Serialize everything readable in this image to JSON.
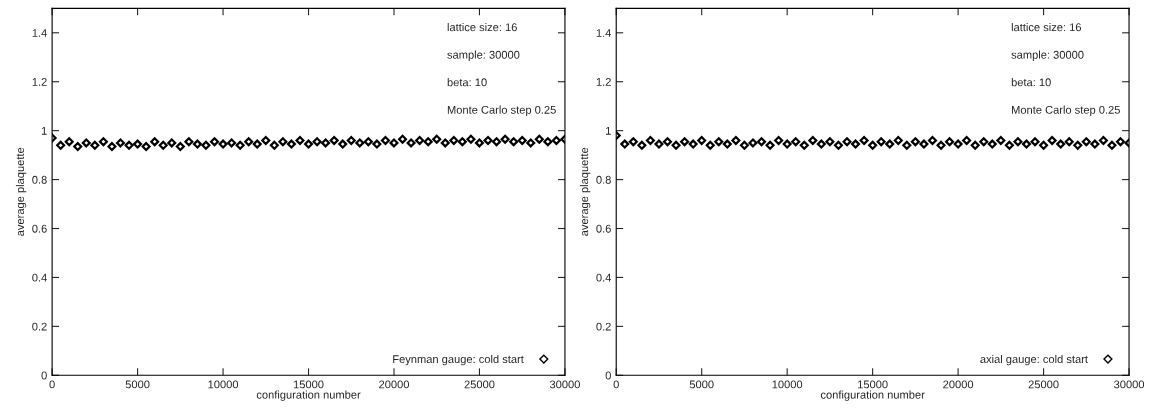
{
  "chart_data": [
    {
      "type": "scatter",
      "xlabel": "configuration number",
      "ylabel": "average plaquette",
      "xlim": [
        0,
        30000
      ],
      "ylim": [
        0,
        1.5
      ],
      "xticks": [
        0,
        5000,
        10000,
        15000,
        20000,
        25000,
        30000
      ],
      "yticks": [
        0,
        0.2,
        0.4,
        0.6,
        0.8,
        1,
        1.2,
        1.4
      ],
      "grid": false,
      "legend": "bottom right",
      "marker": "diamond",
      "annotations": [
        "lattice size: 16",
        "sample: 30000",
        "beta: 10",
        "Monte Carlo step 0.25"
      ],
      "x": [
        0,
        500,
        1000,
        1500,
        2000,
        2500,
        3000,
        3500,
        4000,
        4500,
        5000,
        5500,
        6000,
        6500,
        7000,
        7500,
        8000,
        8500,
        9000,
        9500,
        10000,
        10500,
        11000,
        11500,
        12000,
        12500,
        13000,
        13500,
        14000,
        14500,
        15000,
        15500,
        16000,
        16500,
        17000,
        17500,
        18000,
        18500,
        19000,
        19500,
        20000,
        20500,
        21000,
        21500,
        22000,
        22500,
        23000,
        23500,
        24000,
        24500,
        25000,
        25500,
        26000,
        26500,
        27000,
        27500,
        28000,
        28500,
        29000,
        29500,
        30000
      ],
      "series": [
        {
          "name": "Feynman gauge: cold start",
          "color": "#000000",
          "values": [
            0.97,
            0.94,
            0.955,
            0.935,
            0.95,
            0.94,
            0.955,
            0.935,
            0.95,
            0.94,
            0.945,
            0.935,
            0.955,
            0.94,
            0.95,
            0.935,
            0.955,
            0.945,
            0.94,
            0.955,
            0.945,
            0.95,
            0.94,
            0.955,
            0.945,
            0.96,
            0.94,
            0.955,
            0.945,
            0.96,
            0.945,
            0.955,
            0.95,
            0.96,
            0.945,
            0.96,
            0.95,
            0.955,
            0.945,
            0.96,
            0.95,
            0.965,
            0.95,
            0.96,
            0.955,
            0.965,
            0.95,
            0.96,
            0.955,
            0.965,
            0.95,
            0.96,
            0.955,
            0.965,
            0.955,
            0.96,
            0.95,
            0.965,
            0.955,
            0.96,
            0.965
          ]
        }
      ]
    },
    {
      "type": "scatter",
      "xlabel": "configuration number",
      "ylabel": "average plaquette",
      "xlim": [
        0,
        30000
      ],
      "ylim": [
        0,
        1.5
      ],
      "xticks": [
        0,
        5000,
        10000,
        15000,
        20000,
        25000,
        30000
      ],
      "yticks": [
        0,
        0.2,
        0.4,
        0.6,
        0.8,
        1,
        1.2,
        1.4
      ],
      "grid": false,
      "legend": "bottom right",
      "marker": "diamond",
      "annotations": [
        "lattice size: 16",
        "sample: 30000",
        "beta: 10",
        "Monte Carlo step 0.25"
      ],
      "x": [
        0,
        500,
        1000,
        1500,
        2000,
        2500,
        3000,
        3500,
        4000,
        4500,
        5000,
        5500,
        6000,
        6500,
        7000,
        7500,
        8000,
        8500,
        9000,
        9500,
        10000,
        10500,
        11000,
        11500,
        12000,
        12500,
        13000,
        13500,
        14000,
        14500,
        15000,
        15500,
        16000,
        16500,
        17000,
        17500,
        18000,
        18500,
        19000,
        19500,
        20000,
        20500,
        21000,
        21500,
        22000,
        22500,
        23000,
        23500,
        24000,
        24500,
        25000,
        25500,
        26000,
        26500,
        27000,
        27500,
        28000,
        28500,
        29000,
        29500,
        30000
      ],
      "series": [
        {
          "name": "axial gauge: cold start",
          "color": "#000000",
          "values": [
            0.98,
            0.945,
            0.955,
            0.94,
            0.96,
            0.945,
            0.955,
            0.94,
            0.955,
            0.945,
            0.96,
            0.94,
            0.955,
            0.945,
            0.96,
            0.94,
            0.95,
            0.955,
            0.94,
            0.96,
            0.945,
            0.955,
            0.94,
            0.96,
            0.945,
            0.955,
            0.94,
            0.955,
            0.945,
            0.96,
            0.94,
            0.955,
            0.945,
            0.96,
            0.94,
            0.955,
            0.945,
            0.96,
            0.94,
            0.955,
            0.945,
            0.96,
            0.94,
            0.955,
            0.945,
            0.96,
            0.94,
            0.955,
            0.945,
            0.955,
            0.94,
            0.96,
            0.945,
            0.955,
            0.94,
            0.955,
            0.945,
            0.96,
            0.94,
            0.955,
            0.95
          ]
        }
      ]
    }
  ]
}
